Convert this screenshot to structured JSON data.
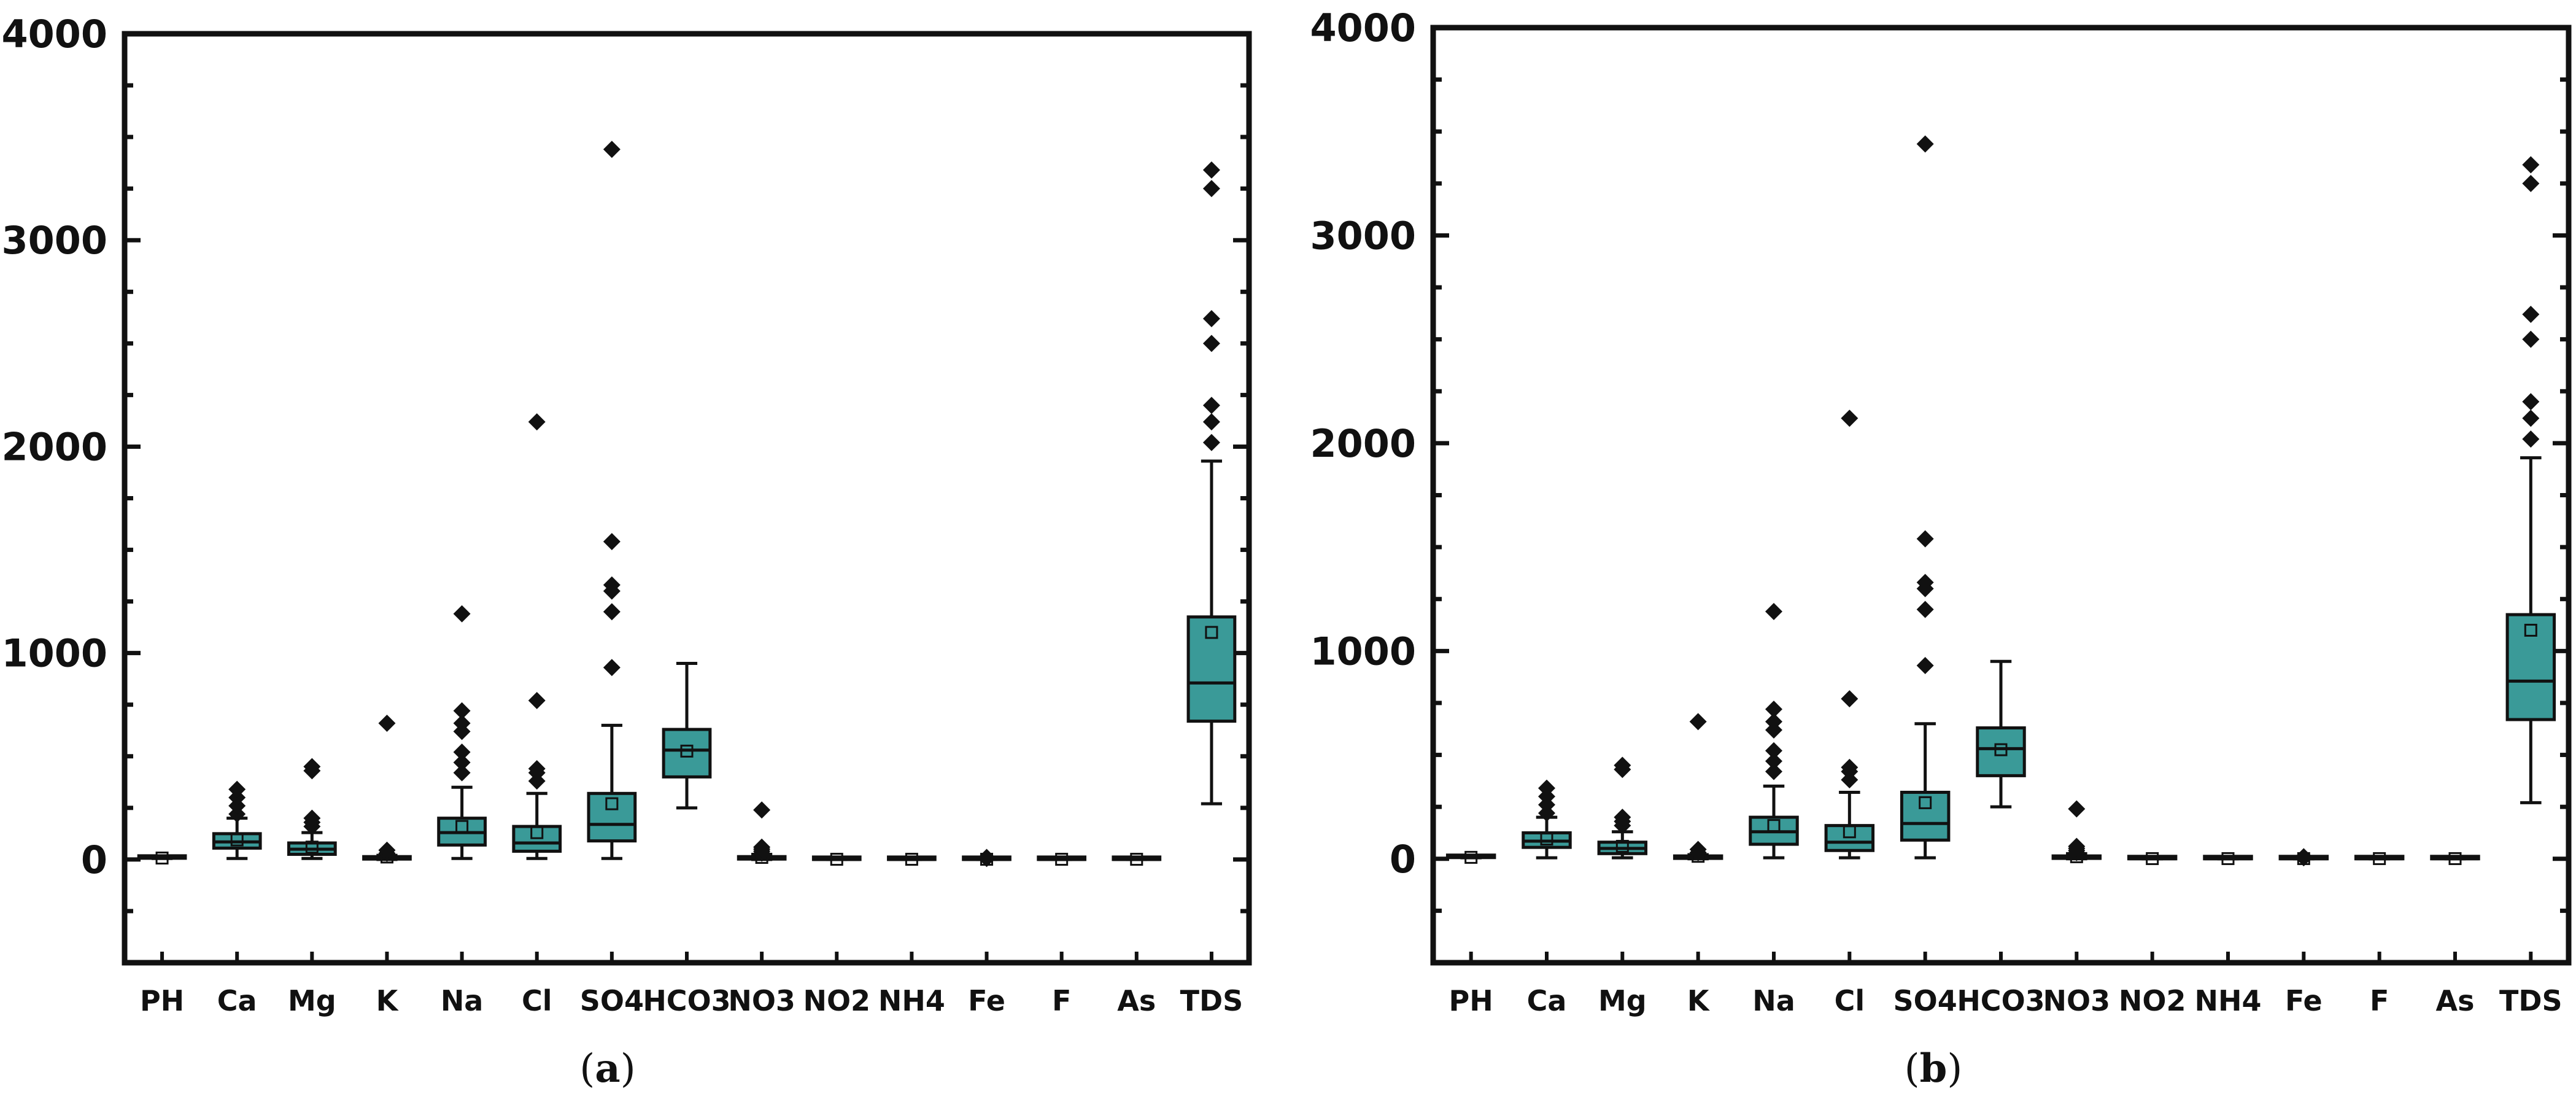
{
  "chart_data": [
    {
      "type": "box",
      "panel_label": "a",
      "categories": [
        "PH",
        "Ca",
        "Mg",
        "K",
        "Na",
        "Cl",
        "SO4",
        "HCO3",
        "NO3",
        "NO2",
        "NH4",
        "Fe",
        "F",
        "As",
        "TDS"
      ],
      "ylim": [
        -500,
        4000
      ],
      "yticks": [
        0,
        1000,
        2000,
        3000,
        4000
      ],
      "grid": false,
      "colors": {
        "box_fill": "#3a9a98",
        "stroke": "#111111",
        "outlier": "#111111"
      },
      "series": [
        {
          "category": "PH",
          "q1": 6,
          "median": 7,
          "q3": 8,
          "whisker_low": 5,
          "whisker_high": 9,
          "mean": 7,
          "outliers": []
        },
        {
          "category": "Ca",
          "q1": 55,
          "median": 85,
          "q3": 125,
          "whisker_low": 5,
          "whisker_high": 200,
          "mean": 95,
          "outliers": [
            220,
            260,
            300,
            340
          ]
        },
        {
          "category": "Mg",
          "q1": 25,
          "median": 50,
          "q3": 80,
          "whisker_low": 5,
          "whisker_high": 130,
          "mean": 60,
          "outliers": [
            160,
            180,
            200,
            430,
            450
          ]
        },
        {
          "category": "K",
          "q1": 2,
          "median": 5,
          "q3": 10,
          "whisker_low": 0,
          "whisker_high": 20,
          "mean": 12,
          "outliers": [
            30,
            45,
            660
          ]
        },
        {
          "category": "Na",
          "q1": 70,
          "median": 130,
          "q3": 200,
          "whisker_low": 5,
          "whisker_high": 350,
          "mean": 160,
          "outliers": [
            420,
            470,
            520,
            620,
            660,
            720,
            1190
          ]
        },
        {
          "category": "Cl",
          "q1": 40,
          "median": 80,
          "q3": 160,
          "whisker_low": 5,
          "whisker_high": 320,
          "mean": 130,
          "outliers": [
            380,
            420,
            440,
            770,
            2120
          ]
        },
        {
          "category": "SO4",
          "q1": 90,
          "median": 170,
          "q3": 320,
          "whisker_low": 5,
          "whisker_high": 650,
          "mean": 270,
          "outliers": [
            930,
            1200,
            1300,
            1330,
            1540,
            3440
          ]
        },
        {
          "category": "HCO3",
          "q1": 400,
          "median": 530,
          "q3": 630,
          "whisker_low": 250,
          "whisker_high": 950,
          "mean": 525,
          "outliers": []
        },
        {
          "category": "NO3",
          "q1": 2,
          "median": 5,
          "q3": 12,
          "whisker_low": 0,
          "whisker_high": 25,
          "mean": 10,
          "outliers": [
            30,
            40,
            50,
            60,
            240
          ]
        },
        {
          "category": "NO2",
          "q1": 0,
          "median": 0.5,
          "q3": 1,
          "whisker_low": 0,
          "whisker_high": 2,
          "mean": 1,
          "outliers": []
        },
        {
          "category": "NH4",
          "q1": 0,
          "median": 0.5,
          "q3": 1,
          "whisker_low": 0,
          "whisker_high": 2,
          "mean": 1,
          "outliers": []
        },
        {
          "category": "Fe",
          "q1": 0,
          "median": 0.5,
          "q3": 1,
          "whisker_low": 0,
          "whisker_high": 2,
          "mean": 1,
          "outliers": [
            5,
            10
          ]
        },
        {
          "category": "F",
          "q1": 0,
          "median": 0.5,
          "q3": 1,
          "whisker_low": 0,
          "whisker_high": 2,
          "mean": 1,
          "outliers": []
        },
        {
          "category": "As",
          "q1": 0,
          "median": 0.5,
          "q3": 1,
          "whisker_low": 0,
          "whisker_high": 2,
          "mean": 1,
          "outliers": []
        },
        {
          "category": "TDS",
          "q1": 670,
          "median": 855,
          "q3": 1175,
          "whisker_low": 270,
          "whisker_high": 1930,
          "mean": 1100,
          "outliers": [
            2020,
            2120,
            2200,
            2500,
            2620,
            3250,
            3340
          ]
        }
      ]
    },
    {
      "type": "box",
      "panel_label": "b",
      "categories": [
        "PH",
        "Ca",
        "Mg",
        "K",
        "Na",
        "Cl",
        "SO4",
        "HCO3",
        "NO3",
        "NO2",
        "NH4",
        "Fe",
        "F",
        "As",
        "TDS"
      ],
      "ylim": [
        -500,
        4000
      ],
      "yticks": [
        0,
        1000,
        2000,
        3000,
        4000
      ],
      "grid": false,
      "colors": {
        "box_fill": "#3a9a98",
        "stroke": "#111111",
        "outlier": "#111111"
      },
      "series": [
        {
          "category": "PH",
          "q1": 6,
          "median": 7,
          "q3": 8,
          "whisker_low": 5,
          "whisker_high": 9,
          "mean": 7,
          "outliers": []
        },
        {
          "category": "Ca",
          "q1": 55,
          "median": 85,
          "q3": 125,
          "whisker_low": 5,
          "whisker_high": 200,
          "mean": 95,
          "outliers": [
            220,
            260,
            300,
            340
          ]
        },
        {
          "category": "Mg",
          "q1": 25,
          "median": 50,
          "q3": 80,
          "whisker_low": 5,
          "whisker_high": 130,
          "mean": 60,
          "outliers": [
            160,
            180,
            200,
            430,
            450
          ]
        },
        {
          "category": "K",
          "q1": 2,
          "median": 5,
          "q3": 10,
          "whisker_low": 0,
          "whisker_high": 20,
          "mean": 12,
          "outliers": [
            30,
            45,
            660
          ]
        },
        {
          "category": "Na",
          "q1": 70,
          "median": 130,
          "q3": 200,
          "whisker_low": 5,
          "whisker_high": 350,
          "mean": 160,
          "outliers": [
            420,
            470,
            520,
            620,
            660,
            720,
            1190
          ]
        },
        {
          "category": "Cl",
          "q1": 40,
          "median": 80,
          "q3": 160,
          "whisker_low": 5,
          "whisker_high": 320,
          "mean": 130,
          "outliers": [
            380,
            420,
            440,
            770,
            2120
          ]
        },
        {
          "category": "SO4",
          "q1": 90,
          "median": 170,
          "q3": 320,
          "whisker_low": 5,
          "whisker_high": 650,
          "mean": 270,
          "outliers": [
            930,
            1200,
            1300,
            1330,
            1540,
            3440
          ]
        },
        {
          "category": "HCO3",
          "q1": 400,
          "median": 530,
          "q3": 630,
          "whisker_low": 250,
          "whisker_high": 950,
          "mean": 525,
          "outliers": []
        },
        {
          "category": "NO3",
          "q1": 2,
          "median": 5,
          "q3": 12,
          "whisker_low": 0,
          "whisker_high": 25,
          "mean": 10,
          "outliers": [
            30,
            40,
            50,
            60,
            240
          ]
        },
        {
          "category": "NO2",
          "q1": 0,
          "median": 0.5,
          "q3": 1,
          "whisker_low": 0,
          "whisker_high": 2,
          "mean": 1,
          "outliers": []
        },
        {
          "category": "NH4",
          "q1": 0,
          "median": 0.5,
          "q3": 1,
          "whisker_low": 0,
          "whisker_high": 2,
          "mean": 1,
          "outliers": []
        },
        {
          "category": "Fe",
          "q1": 0,
          "median": 0.5,
          "q3": 1,
          "whisker_low": 0,
          "whisker_high": 2,
          "mean": 1,
          "outliers": [
            5,
            10
          ]
        },
        {
          "category": "F",
          "q1": 0,
          "median": 0.5,
          "q3": 1,
          "whisker_low": 0,
          "whisker_high": 2,
          "mean": 1,
          "outliers": []
        },
        {
          "category": "As",
          "q1": 0,
          "median": 0.5,
          "q3": 1,
          "whisker_low": 0,
          "whisker_high": 2,
          "mean": 1,
          "outliers": []
        },
        {
          "category": "TDS",
          "q1": 670,
          "median": 855,
          "q3": 1175,
          "whisker_low": 270,
          "whisker_high": 1930,
          "mean": 1100,
          "outliers": [
            2020,
            2120,
            2200,
            2500,
            2620,
            3250,
            3340
          ]
        }
      ]
    }
  ]
}
